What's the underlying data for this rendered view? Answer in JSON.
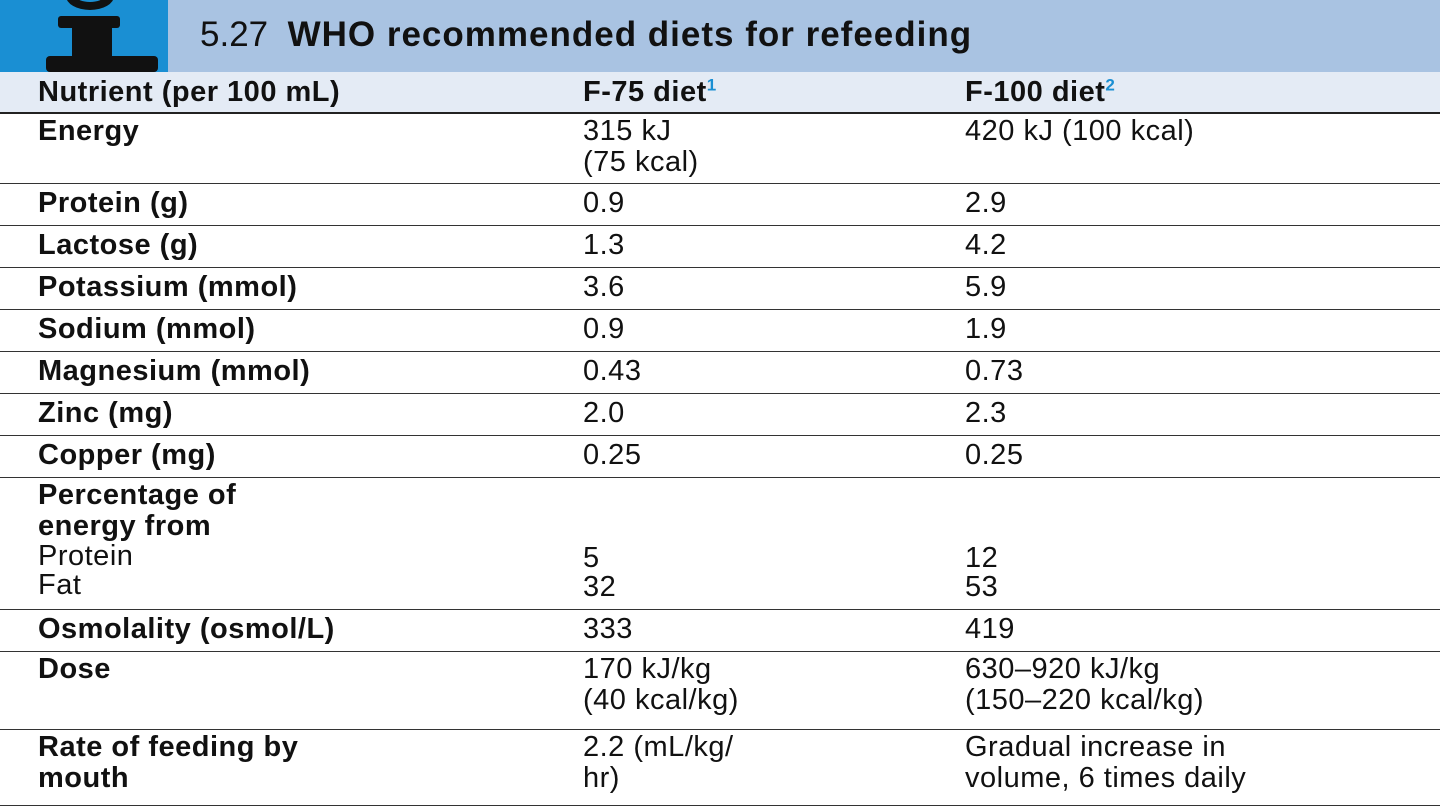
{
  "title": {
    "number": "5.27",
    "text": "WHO recommended diets for refeeding",
    "icon": "info-icon"
  },
  "colors": {
    "title_bar": "#a9c3e2",
    "icon_box": "#1a8fd3",
    "header_row": "#e4ebf5"
  },
  "header": {
    "nutrient": "Nutrient (per 100 mL)",
    "f75": "F-75 diet",
    "f75_sup": "1",
    "f100": "F-100 diet",
    "f100_sup": "2"
  },
  "rows": [
    {
      "nutrient": [
        "Energy"
      ],
      "f75": [
        "315 kJ",
        "(75 kcal)"
      ],
      "f100": [
        "420 kJ (100 kcal)"
      ]
    },
    {
      "nutrient": [
        "Protein (g)"
      ],
      "f75": [
        "0.9"
      ],
      "f100": [
        "2.9"
      ]
    },
    {
      "nutrient": [
        "Lactose (g)"
      ],
      "f75": [
        "1.3"
      ],
      "f100": [
        "4.2"
      ]
    },
    {
      "nutrient": [
        "Potassium (mmol)"
      ],
      "f75": [
        "3.6"
      ],
      "f100": [
        "5.9"
      ]
    },
    {
      "nutrient": [
        "Sodium (mmol)"
      ],
      "f75": [
        "0.9"
      ],
      "f100": [
        "1.9"
      ]
    },
    {
      "nutrient": [
        "Magnesium (mmol)"
      ],
      "f75": [
        "0.43"
      ],
      "f100": [
        "0.73"
      ]
    },
    {
      "nutrient": [
        "Zinc (mg)"
      ],
      "f75": [
        "2.0"
      ],
      "f100": [
        "2.3"
      ]
    },
    {
      "nutrient": [
        "Copper (mg)"
      ],
      "f75": [
        "0.25"
      ],
      "f100": [
        "0.25"
      ]
    },
    {
      "nutrient": [
        "Percentage of",
        "energy from"
      ],
      "sub_labels": [
        "Protein",
        "Fat"
      ],
      "f75": [
        "5",
        "32"
      ],
      "f100": [
        "12",
        "53"
      ]
    },
    {
      "nutrient": [
        "Osmolality (osmol/L)"
      ],
      "f75": [
        "333"
      ],
      "f100": [
        "419"
      ]
    },
    {
      "nutrient": [
        "Dose"
      ],
      "f75": [
        "170 kJ/kg",
        "(40 kcal/kg)"
      ],
      "f100": [
        "630–920 kJ/kg",
        "(150–220 kcal/kg)"
      ]
    },
    {
      "nutrient": [
        "Rate of feeding by",
        "mouth"
      ],
      "f75": [
        "2.2 (mL/kg/",
        "hr)"
      ],
      "f100": [
        "Gradual increase in",
        "volume, 6 times daily"
      ]
    }
  ]
}
